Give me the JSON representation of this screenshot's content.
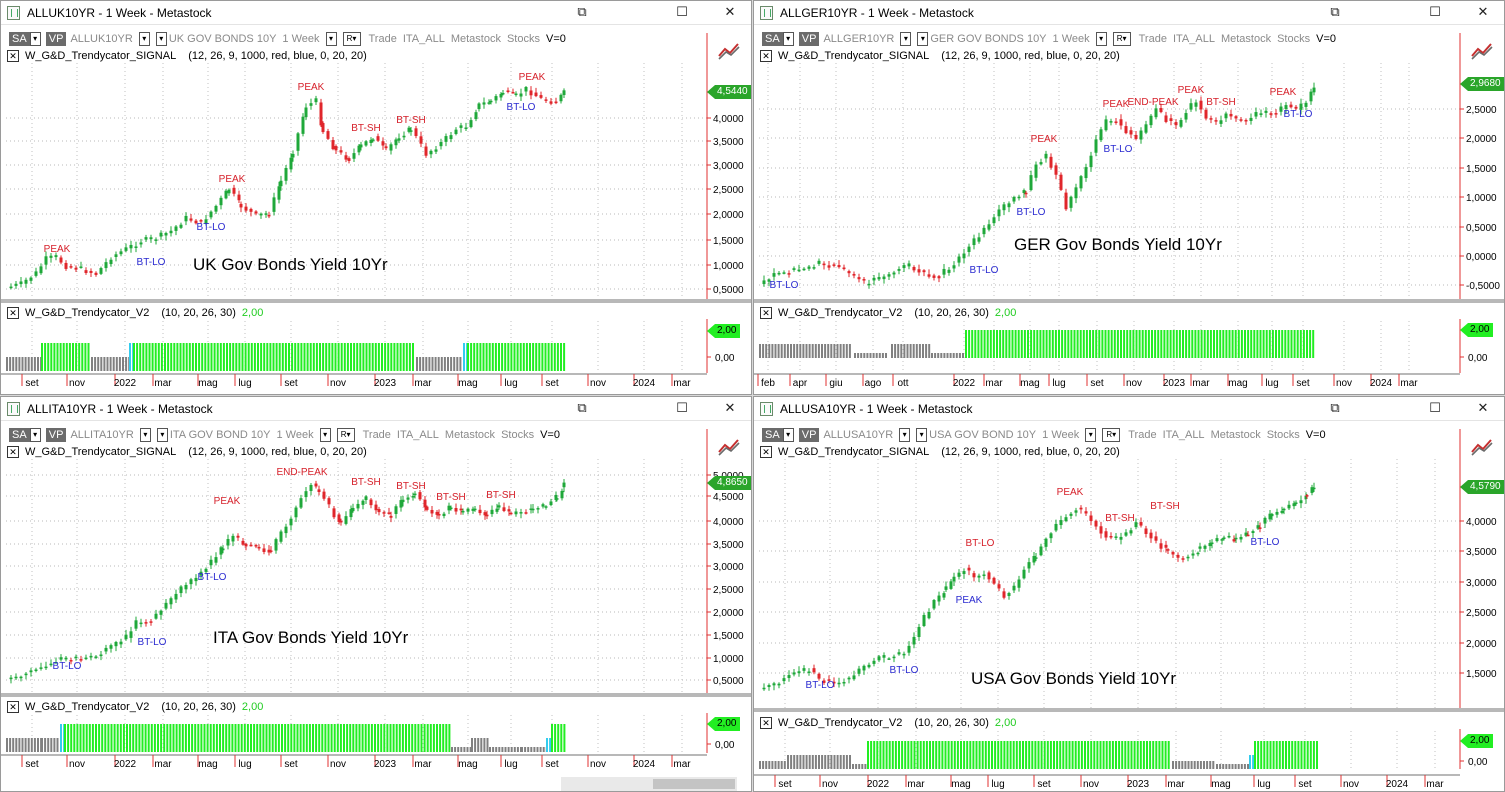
{
  "windows": [
    {
      "id": "uk",
      "title": "ALLUK10YR - 1 Week - Metastock",
      "symbol": "ALLUK10YR",
      "security": "UK GOV BONDS 10Y",
      "period": "1 Week",
      "trade": "Trade",
      "list": "ITA_ALL",
      "source": "Metastock",
      "stocks": "Stocks",
      "volume": "V=0",
      "signal_indicator": "W_G&D_Trendycator_SIGNAL",
      "signal_params": "(12, 26, 9, 1000, red, blue, 0, 20, 20)",
      "v2_indicator": "W_G&D_Trendycator_V2",
      "v2_params": "(10, 20, 26, 30)",
      "v2_value": "2,00",
      "price_badge": "4,5440",
      "ind_badge": "2,00",
      "ind_zero": "0,00",
      "label": "UK Gov Bonds Yield 10Yr",
      "y_ticks": [
        "4,0000",
        "3,5000",
        "3,0000",
        "2,5000",
        "2,0000",
        "1,5000",
        "1,0000",
        "0,5000"
      ],
      "x_ticks": [
        "set",
        "nov",
        "2022",
        "mar",
        "mag",
        "lug",
        "set",
        "nov",
        "2023",
        "mar",
        "mag",
        "lug",
        "set",
        "nov",
        "2024",
        "mar"
      ],
      "annotations": [
        "PEAK",
        "BT-LO",
        "BT-LO",
        "PEAK",
        "PEAK",
        "BT-SH",
        "BT-SH",
        "PEAK",
        "BT-LO"
      ]
    },
    {
      "id": "ger",
      "title": "ALLGER10YR - 1 Week - Metastock",
      "symbol": "ALLGER10YR",
      "security": "GER GOV BONDS 10Y",
      "period": "1 Week",
      "trade": "Trade",
      "list": "ITA_ALL",
      "source": "Metastock",
      "stocks": "Stocks",
      "volume": "V=0",
      "signal_indicator": "W_G&D_Trendycator_SIGNAL",
      "signal_params": "(12, 26, 9, 1000, red, blue, 0, 20, 20)",
      "v2_indicator": "W_G&D_Trendycator_V2",
      "v2_params": "(10, 20, 26, 30)",
      "v2_value": "2,00",
      "price_badge": "2,9680",
      "ind_badge": "2,00",
      "ind_zero": "0,00",
      "label": "GER Gov Bonds Yield 10Yr",
      "y_ticks": [
        "2,5000",
        "2,0000",
        "1,5000",
        "1,0000",
        "0,5000",
        "0,0000",
        "-0,5000"
      ],
      "x_ticks": [
        "feb",
        "apr",
        "giu",
        "ago",
        "ott",
        "2022",
        "mar",
        "mag",
        "lug",
        "set",
        "nov",
        "2023",
        "mar",
        "mag",
        "lug",
        "set",
        "nov",
        "2024",
        "mar"
      ],
      "annotations": [
        "BT-LO",
        "BT-LO",
        "BT-LO",
        "PEAK",
        "BT-LO",
        "PEAK",
        "END-PEAK",
        "PEAK",
        "BT-SH",
        "PEAK",
        "BT-LO"
      ]
    },
    {
      "id": "ita",
      "title": "ALLITA10YR - 1 Week - Metastock",
      "symbol": "ALLITA10YR",
      "security": "ITA GOV BOND 10Y",
      "period": "1 Week",
      "trade": "Trade",
      "list": "ITA_ALL",
      "source": "Metastock",
      "stocks": "Stocks",
      "volume": "V=0",
      "signal_indicator": "W_G&D_Trendycator_SIGNAL",
      "signal_params": "(12, 26, 9, 1000, red, blue, 0, 20, 20)",
      "v2_indicator": "W_G&D_Trendycator_V2",
      "v2_params": "(10, 20, 26, 30)",
      "v2_value": "2,00",
      "price_badge": "4,8650",
      "ind_badge": "2,00",
      "ind_zero": "0,00",
      "label": "ITA Gov Bonds Yield 10Yr",
      "y_ticks": [
        "5,0000",
        "4,5000",
        "4,0000",
        "3,5000",
        "3,0000",
        "2,5000",
        "2,0000",
        "1,5000",
        "1,0000",
        "0,5000"
      ],
      "x_ticks": [
        "set",
        "nov",
        "2022",
        "mar",
        "mag",
        "lug",
        "set",
        "nov",
        "2023",
        "mar",
        "mag",
        "lug",
        "set",
        "nov",
        "2024",
        "mar"
      ],
      "annotations": [
        "BT-LO",
        "BT-LO",
        "BT-LO",
        "PEAK",
        "END-PEAK",
        "BT-SH",
        "BT-SH",
        "BT-SH",
        "BT-SH"
      ]
    },
    {
      "id": "usa",
      "title": "ALLUSA10YR - 1 Week - Metastock",
      "symbol": "ALLUSA10YR",
      "security": "USA GOV BOND 10Y",
      "period": "1 Week",
      "trade": "Trade",
      "list": "ITA_ALL",
      "source": "Metastock",
      "stocks": "Stocks",
      "volume": "V=0",
      "signal_indicator": "W_G&D_Trendycator_SIGNAL",
      "signal_params": "(12, 26, 9, 1000, red, blue, 0, 20, 20)",
      "v2_indicator": "W_G&D_Trendycator_V2",
      "v2_params": "(10, 20, 26, 30)",
      "v2_value": "2,00",
      "price_badge": "4,5790",
      "ind_badge": "2,00",
      "ind_zero": "0,00",
      "label": "USA Gov Bonds Yield 10Yr",
      "y_ticks": [
        "4,0000",
        "3,5000",
        "3,0000",
        "2,5000",
        "2,0000",
        "1,5000"
      ],
      "x_ticks": [
        "set",
        "nov",
        "2022",
        "mar",
        "mag",
        "lug",
        "set",
        "nov",
        "2023",
        "mar",
        "mag",
        "lug",
        "set",
        "nov",
        "2024",
        "mar"
      ],
      "annotations": [
        "BT-LO",
        "BT-LO",
        "PEAK",
        "BT-LO",
        "PEAK",
        "BT-SH",
        "BT-SH",
        "BT-LO"
      ]
    }
  ],
  "toolbar": {
    "sa": "SA",
    "vp": "VP",
    "r": "R"
  },
  "window_buttons": {
    "restore": "⧉",
    "maximize": "☐",
    "close": "✕"
  },
  "colors": {
    "up": "#1fa83a",
    "down": "#e0262b",
    "annot_peak": "#d6202a",
    "annot_low": "#2a2ad0",
    "ind_green": "#22ee22",
    "ind_grey": "#808080",
    "ind_cyan": "#33ccee",
    "axis_red": "#e03030"
  }
}
